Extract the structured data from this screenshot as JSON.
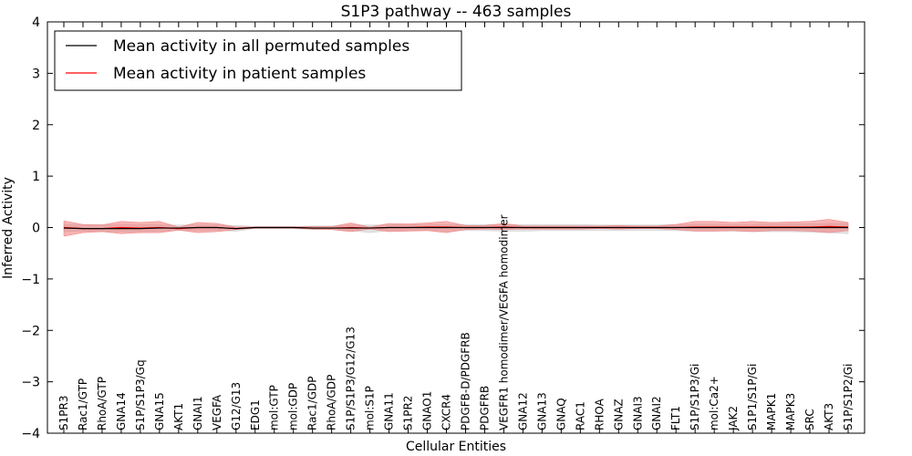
{
  "chart_data": {
    "type": "line",
    "title": "S1P3 pathway -- 463 samples",
    "xlabel": "Cellular Entities",
    "ylabel": "Inferred Activity",
    "ylim": [
      -4,
      4
    ],
    "yticks": [
      -4,
      -3,
      -2,
      -1,
      0,
      1,
      2,
      3,
      4
    ],
    "ytick_labels": [
      "−4",
      "−3",
      "−2",
      "−1",
      "0",
      "1",
      "2",
      "3",
      "4"
    ],
    "legend_position": "top-left",
    "categories": [
      "S1PR3",
      "Rac1/GTP",
      "RhoA/GTP",
      "GNA14",
      "S1P/S1P3/Gq",
      "GNA15",
      "AKT1",
      "GNAI1",
      "VEGFA",
      "G12/G13",
      "EDG1",
      "mol:GTP",
      "mol:GDP",
      "Rac1/GDP",
      "RhoA/GDP",
      "S1P/S1P3/G12/G13",
      "mol:S1P",
      "GNA11",
      "S1PR2",
      "GNAO1",
      "CXCR4",
      "PDGFB-D/PDGFRB",
      "PDGFRB",
      "VEGFR1 homodimer/VEGFA homodimer",
      "GNA12",
      "GNA13",
      "GNAQ",
      "RAC1",
      "RHOA",
      "GNAZ",
      "GNAI3",
      "GNAI2",
      "FLT1",
      "S1P/S1P3/Gi",
      "mol:Ca2+",
      "JAK2",
      "S1P1/S1P/Gi",
      "MAPK1",
      "MAPK3",
      "SRC",
      "AKT3",
      "S1P/S1P2/Gi"
    ],
    "series": [
      {
        "name": "Mean activity in all permuted samples",
        "color": "#000000",
        "band_color": "#cccccc",
        "values": [
          -0.01,
          -0.02,
          -0.02,
          -0.02,
          -0.02,
          -0.01,
          -0.01,
          0.0,
          0.0,
          -0.02,
          0.0,
          0.0,
          0.0,
          -0.01,
          -0.01,
          -0.01,
          -0.01,
          0.0,
          0.0,
          0.0,
          0.0,
          0.0,
          0.0,
          0.0,
          0.0,
          0.0,
          0.0,
          0.0,
          0.0,
          0.0,
          0.0,
          0.0,
          0.0,
          0.0,
          0.0,
          0.0,
          0.0,
          0.0,
          0.0,
          0.0,
          0.0,
          0.0
        ],
        "band_lower": [
          -0.08,
          -0.07,
          -0.08,
          -0.08,
          -0.08,
          -0.07,
          -0.06,
          -0.06,
          -0.06,
          -0.07,
          -0.02,
          -0.02,
          -0.02,
          -0.04,
          -0.04,
          -0.06,
          -0.1,
          -0.06,
          -0.06,
          -0.06,
          -0.07,
          -0.06,
          -0.06,
          -0.07,
          -0.07,
          -0.06,
          -0.06,
          -0.06,
          -0.06,
          -0.06,
          -0.06,
          -0.06,
          -0.06,
          -0.07,
          -0.07,
          -0.07,
          -0.08,
          -0.08,
          -0.08,
          -0.09,
          -0.1,
          -0.12
        ],
        "band_upper": [
          0.06,
          0.05,
          0.06,
          0.06,
          0.06,
          0.05,
          0.05,
          0.05,
          0.05,
          0.04,
          0.02,
          0.02,
          0.02,
          0.03,
          0.03,
          0.05,
          0.05,
          0.05,
          0.06,
          0.06,
          0.06,
          0.06,
          0.06,
          0.06,
          0.06,
          0.06,
          0.06,
          0.06,
          0.05,
          0.05,
          0.05,
          0.05,
          0.06,
          0.06,
          0.06,
          0.06,
          0.06,
          0.07,
          0.07,
          0.07,
          0.08,
          0.08
        ]
      },
      {
        "name": "Mean activity in patient samples",
        "color": "#ff0000",
        "band_color": "#f08080",
        "values": [
          0.0,
          -0.02,
          -0.02,
          0.0,
          -0.01,
          0.0,
          -0.02,
          0.0,
          0.0,
          -0.02,
          0.0,
          0.0,
          0.0,
          -0.01,
          -0.01,
          0.0,
          -0.01,
          0.0,
          0.0,
          0.01,
          0.01,
          0.0,
          0.0,
          0.01,
          0.0,
          0.0,
          0.0,
          0.0,
          0.0,
          0.0,
          0.0,
          0.0,
          0.0,
          0.01,
          0.01,
          0.01,
          0.01,
          0.01,
          0.01,
          0.01,
          0.02,
          0.01
        ],
        "band_lower": [
          -0.17,
          -0.1,
          -0.08,
          -0.12,
          -0.1,
          -0.1,
          -0.05,
          -0.1,
          -0.08,
          -0.04,
          -0.01,
          -0.01,
          -0.01,
          -0.03,
          -0.04,
          -0.08,
          -0.03,
          -0.08,
          -0.07,
          -0.06,
          -0.1,
          -0.04,
          -0.03,
          -0.04,
          -0.03,
          -0.03,
          -0.03,
          -0.03,
          -0.02,
          -0.03,
          -0.02,
          -0.02,
          -0.04,
          -0.07,
          -0.07,
          -0.06,
          -0.08,
          -0.06,
          -0.06,
          -0.07,
          -0.1,
          -0.06
        ],
        "band_upper": [
          0.13,
          0.06,
          0.05,
          0.12,
          0.1,
          0.12,
          0.01,
          0.1,
          0.08,
          0.01,
          0.01,
          0.01,
          0.01,
          0.02,
          0.02,
          0.09,
          0.01,
          0.08,
          0.07,
          0.09,
          0.12,
          0.04,
          0.04,
          0.08,
          0.03,
          0.03,
          0.03,
          0.03,
          0.03,
          0.04,
          0.03,
          0.03,
          0.06,
          0.12,
          0.12,
          0.1,
          0.12,
          0.1,
          0.11,
          0.12,
          0.16,
          0.1
        ]
      }
    ]
  }
}
